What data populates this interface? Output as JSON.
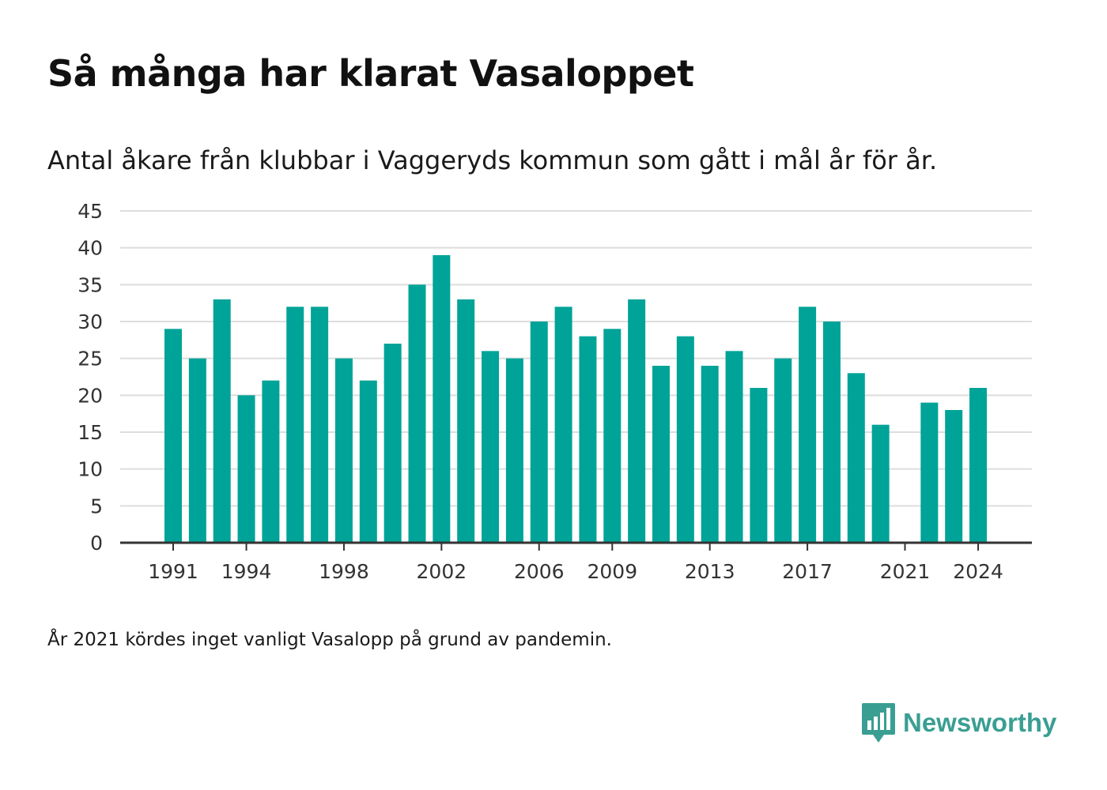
{
  "title": "Så många har klarat Vasaloppet",
  "subtitle": "Antal åkare från klubbar i Vaggeryds kommun som gått i mål år för år.",
  "footnote": "År 2021 kördes inget vanligt Vasalopp på grund av pandemin.",
  "brand": {
    "name": "Newsworthy",
    "icon": "newsworthy-logo-icon"
  },
  "colors": {
    "bar": "#00a398",
    "grid": "#dddddd",
    "axis": "#333333",
    "brand": "#3a9e93"
  },
  "chart_data": {
    "type": "bar",
    "title": "Så många har klarat Vasaloppet",
    "subtitle": "Antal åkare från klubbar i Vaggeryds kommun som gått i mål år för år.",
    "xlabel": "",
    "ylabel": "",
    "ylim": [
      0,
      45
    ],
    "yticks": [
      0,
      5,
      10,
      15,
      20,
      25,
      30,
      35,
      40,
      45
    ],
    "grid": true,
    "legend": "none",
    "x_tick_labels": [
      "1991",
      "1994",
      "1998",
      "2002",
      "2006",
      "2009",
      "2013",
      "2017",
      "2021",
      "2024"
    ],
    "categories": [
      "1991",
      "1992",
      "1993",
      "1994",
      "1995",
      "1996",
      "1997",
      "1998",
      "1999",
      "2000",
      "2001",
      "2002",
      "2003",
      "2004",
      "2005",
      "2006",
      "2007",
      "2008",
      "2009",
      "2010",
      "2011",
      "2012",
      "2013",
      "2014",
      "2015",
      "2016",
      "2017",
      "2018",
      "2019",
      "2020",
      "2021",
      "2022",
      "2023",
      "2024"
    ],
    "values": [
      29,
      25,
      33,
      20,
      22,
      32,
      32,
      25,
      22,
      27,
      35,
      39,
      33,
      26,
      25,
      30,
      32,
      28,
      29,
      33,
      24,
      28,
      24,
      26,
      21,
      25,
      32,
      30,
      23,
      16,
      null,
      19,
      18,
      21
    ]
  }
}
